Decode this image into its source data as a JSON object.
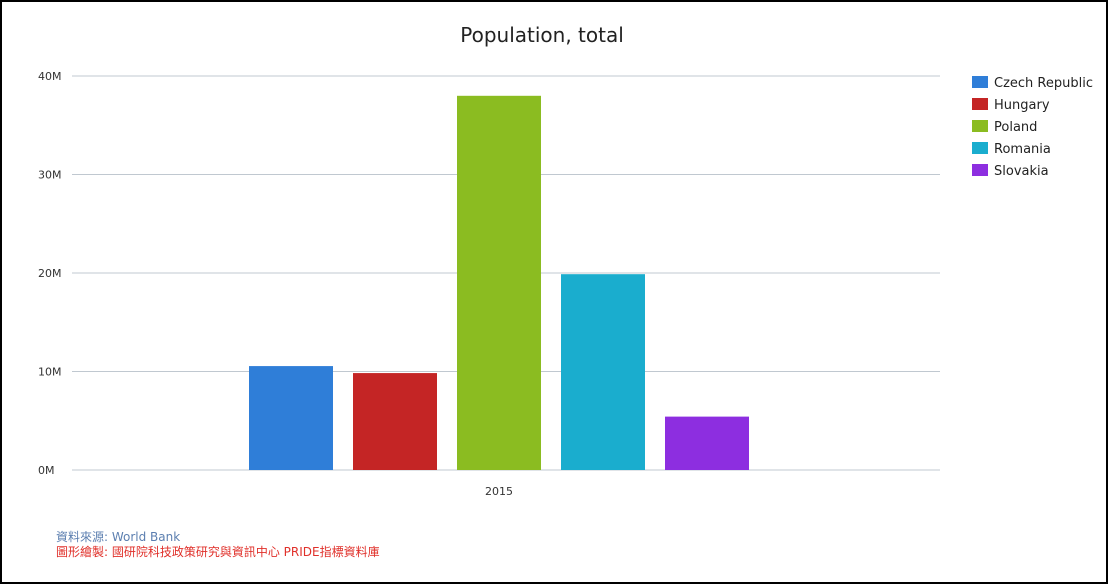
{
  "chart_data": {
    "type": "bar",
    "title": "Population, total",
    "categories": [
      "2015"
    ],
    "ylim": [
      0,
      40000000
    ],
    "yticks": [
      {
        "value": 0,
        "label": "0M"
      },
      {
        "value": 10000000,
        "label": "10M"
      },
      {
        "value": 20000000,
        "label": "20M"
      },
      {
        "value": 30000000,
        "label": "30M"
      },
      {
        "value": 40000000,
        "label": "40M"
      }
    ],
    "grid": true,
    "legend_position": "top-right",
    "series": [
      {
        "name": "Czech Republic",
        "values": [
          10550000
        ],
        "color": "#2f7ed8"
      },
      {
        "name": "Hungary",
        "values": [
          9840000
        ],
        "color": "#c42525"
      },
      {
        "name": "Poland",
        "values": [
          37990000
        ],
        "color": "#8bbc21"
      },
      {
        "name": "Romania",
        "values": [
          19880000
        ],
        "color": "#1aadce"
      },
      {
        "name": "Slovakia",
        "values": [
          5420000
        ],
        "color": "#8d2ee0"
      }
    ]
  },
  "credits": {
    "source": "資料來源: World Bank",
    "author": "圖形繪製: 國研院科技政策研究與資訊中心 PRIDE指標資料庫"
  }
}
